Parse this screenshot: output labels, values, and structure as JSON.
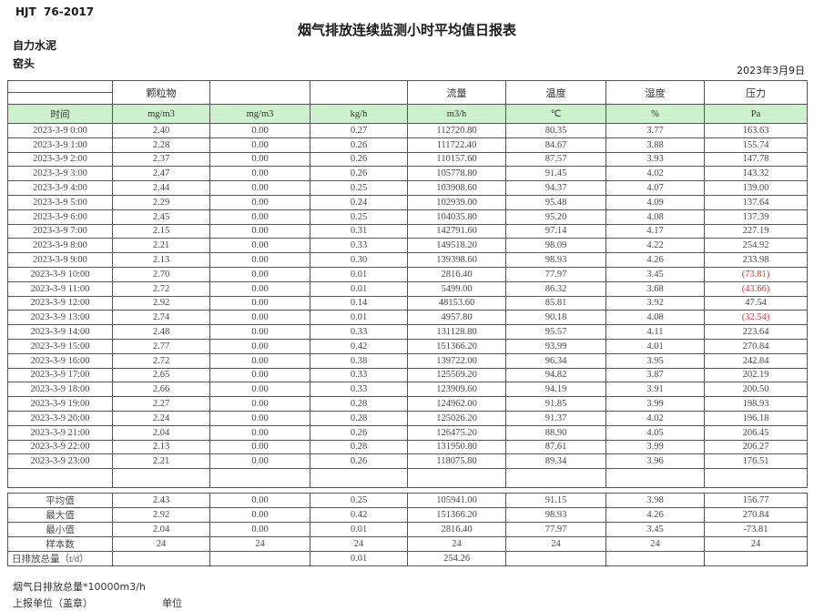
{
  "header": {
    "standard": "HJT  76-2017",
    "title": "烟气排放连续监测小时平均值日报表",
    "company": "自力水泥",
    "monitor_point": "窑头",
    "date": "2023年3月9日"
  },
  "colors": {
    "units_band_green": "#cdf0cd",
    "negative_value_red": "#e03636",
    "grid_border": "#555555"
  },
  "table": {
    "group_headers": [
      "",
      "颗粒物",
      "",
      "",
      "流量",
      "温度",
      "湿度",
      "压力"
    ],
    "unit_row": [
      "时间",
      "mg/m3",
      "mg/m3",
      "kg/h",
      "m3/h",
      "℃",
      "%",
      "Pa"
    ],
    "rows": [
      {
        "time": "2023-3-9 0:00",
        "values": [
          "2.40",
          "0.00",
          "0.27",
          "112720.80",
          "80.35",
          "3.77",
          "163.63"
        ]
      },
      {
        "time": "2023-3-9 1:00",
        "values": [
          "2.28",
          "0.00",
          "0.26",
          "111722.40",
          "84.67",
          "3.88",
          "155.74"
        ]
      },
      {
        "time": "2023-3-9 2:00",
        "values": [
          "2.37",
          "0.00",
          "0.26",
          "110157.60",
          "87.57",
          "3.93",
          "147.78"
        ]
      },
      {
        "time": "2023-3-9 3:00",
        "values": [
          "2.47",
          "0.00",
          "0.26",
          "105778.80",
          "91.45",
          "4.02",
          "143.32"
        ]
      },
      {
        "time": "2023-3-9 4:00",
        "values": [
          "2.44",
          "0.00",
          "0.25",
          "103908.60",
          "94.37",
          "4.07",
          "139.00"
        ]
      },
      {
        "time": "2023-3-9 5:00",
        "values": [
          "2.29",
          "0.00",
          "0.24",
          "102939.00",
          "95.48",
          "4.09",
          "137.64"
        ]
      },
      {
        "time": "2023-3-9 6:00",
        "values": [
          "2.45",
          "0.00",
          "0.25",
          "104035.80",
          "95.20",
          "4.08",
          "137.39"
        ]
      },
      {
        "time": "2023-3-9 7:00",
        "values": [
          "2.15",
          "0.00",
          "0.31",
          "142791.60",
          "97.14",
          "4.17",
          "227.19"
        ]
      },
      {
        "time": "2023-3-9 8:00",
        "values": [
          "2.21",
          "0.00",
          "0.33",
          "149518.20",
          "98.09",
          "4.22",
          "254.92"
        ]
      },
      {
        "time": "2023-3-9 9:00",
        "values": [
          "2.13",
          "0.00",
          "0.30",
          "139398.60",
          "98.93",
          "4.26",
          "233.98"
        ]
      },
      {
        "time": "2023-3-9 10:00",
        "values": [
          "2.70",
          "0.00",
          "0.01",
          "2816.40",
          "77.97",
          "3.45",
          "(73.81)"
        ]
      },
      {
        "time": "2023-3-9 11:00",
        "values": [
          "2.72",
          "0.00",
          "0.01",
          "5499.00",
          "86.32",
          "3.68",
          "(43.66)"
        ]
      },
      {
        "time": "2023-3-9 12:00",
        "values": [
          "2.92",
          "0.00",
          "0.14",
          "48153.60",
          "85.81",
          "3.92",
          "47.54"
        ]
      },
      {
        "time": "2023-3-9 13:00",
        "values": [
          "2.74",
          "0.00",
          "0.01",
          "4957.80",
          "90.18",
          "4.08",
          "(32.54)"
        ]
      },
      {
        "time": "2023-3-9 14:00",
        "values": [
          "2.48",
          "0.00",
          "0.33",
          "131128.80",
          "95.57",
          "4.11",
          "223.64"
        ]
      },
      {
        "time": "2023-3-9 15:00",
        "values": [
          "2.77",
          "0.00",
          "0.42",
          "151366.20",
          "93.99",
          "4.01",
          "270.84"
        ]
      },
      {
        "time": "2023-3-9 16:00",
        "values": [
          "2.72",
          "0.00",
          "0.38",
          "139722.00",
          "96.34",
          "3.95",
          "242.84"
        ]
      },
      {
        "time": "2023-3-9 17:00",
        "values": [
          "2.65",
          "0.00",
          "0.33",
          "125569.20",
          "94.82",
          "3.87",
          "202.19"
        ]
      },
      {
        "time": "2023-3-9 18:00",
        "values": [
          "2.66",
          "0.00",
          "0.33",
          "123909.60",
          "94.19",
          "3.91",
          "200.50"
        ]
      },
      {
        "time": "2023-3-9 19:00",
        "values": [
          "2.27",
          "0.00",
          "0.28",
          "124962.00",
          "91.85",
          "3.99",
          "198.93"
        ]
      },
      {
        "time": "2023-3-9 20:00",
        "values": [
          "2.24",
          "0.00",
          "0.28",
          "125026.20",
          "91.37",
          "4.02",
          "196.18"
        ]
      },
      {
        "time": "2023-3-9 21:00",
        "values": [
          "2.04",
          "0.00",
          "0.26",
          "126475.20",
          "88.90",
          "4.05",
          "206.45"
        ]
      },
      {
        "time": "2023-3-9 22:00",
        "values": [
          "2.13",
          "0.00",
          "0.28",
          "131950.80",
          "87.61",
          "3.99",
          "206.27"
        ]
      },
      {
        "time": "2023-3-9 23:00",
        "values": [
          "2.21",
          "0.00",
          "0.26",
          "118075.80",
          "89.34",
          "3.96",
          "176.51"
        ]
      }
    ],
    "summary": [
      {
        "label": "平均值",
        "values": [
          "2.43",
          "0.00",
          "0.25",
          "105941.00",
          "91.15",
          "3.98",
          "156.77"
        ]
      },
      {
        "label": "最大值",
        "values": [
          "2.92",
          "0.00",
          "0.42",
          "151366.20",
          "98.93",
          "4.26",
          "270.84"
        ]
      },
      {
        "label": "最小值",
        "values": [
          "2.04",
          "0.00",
          "0.01",
          "2816.40",
          "77.97",
          "3.45",
          "-73.81"
        ]
      },
      {
        "label": "样本数",
        "values": [
          "24",
          "24",
          "24",
          "24",
          "24",
          "24",
          "24"
        ]
      },
      {
        "label": "日排放总量（t/d）",
        "align": "left",
        "values": [
          "",
          "",
          "0.01",
          "254.26",
          "",
          "",
          ""
        ]
      }
    ]
  },
  "footer": {
    "note": "烟气日排放总量*10000m3/h",
    "report_unit_label": "上报单位（盖章）",
    "unit_label": "单位"
  }
}
